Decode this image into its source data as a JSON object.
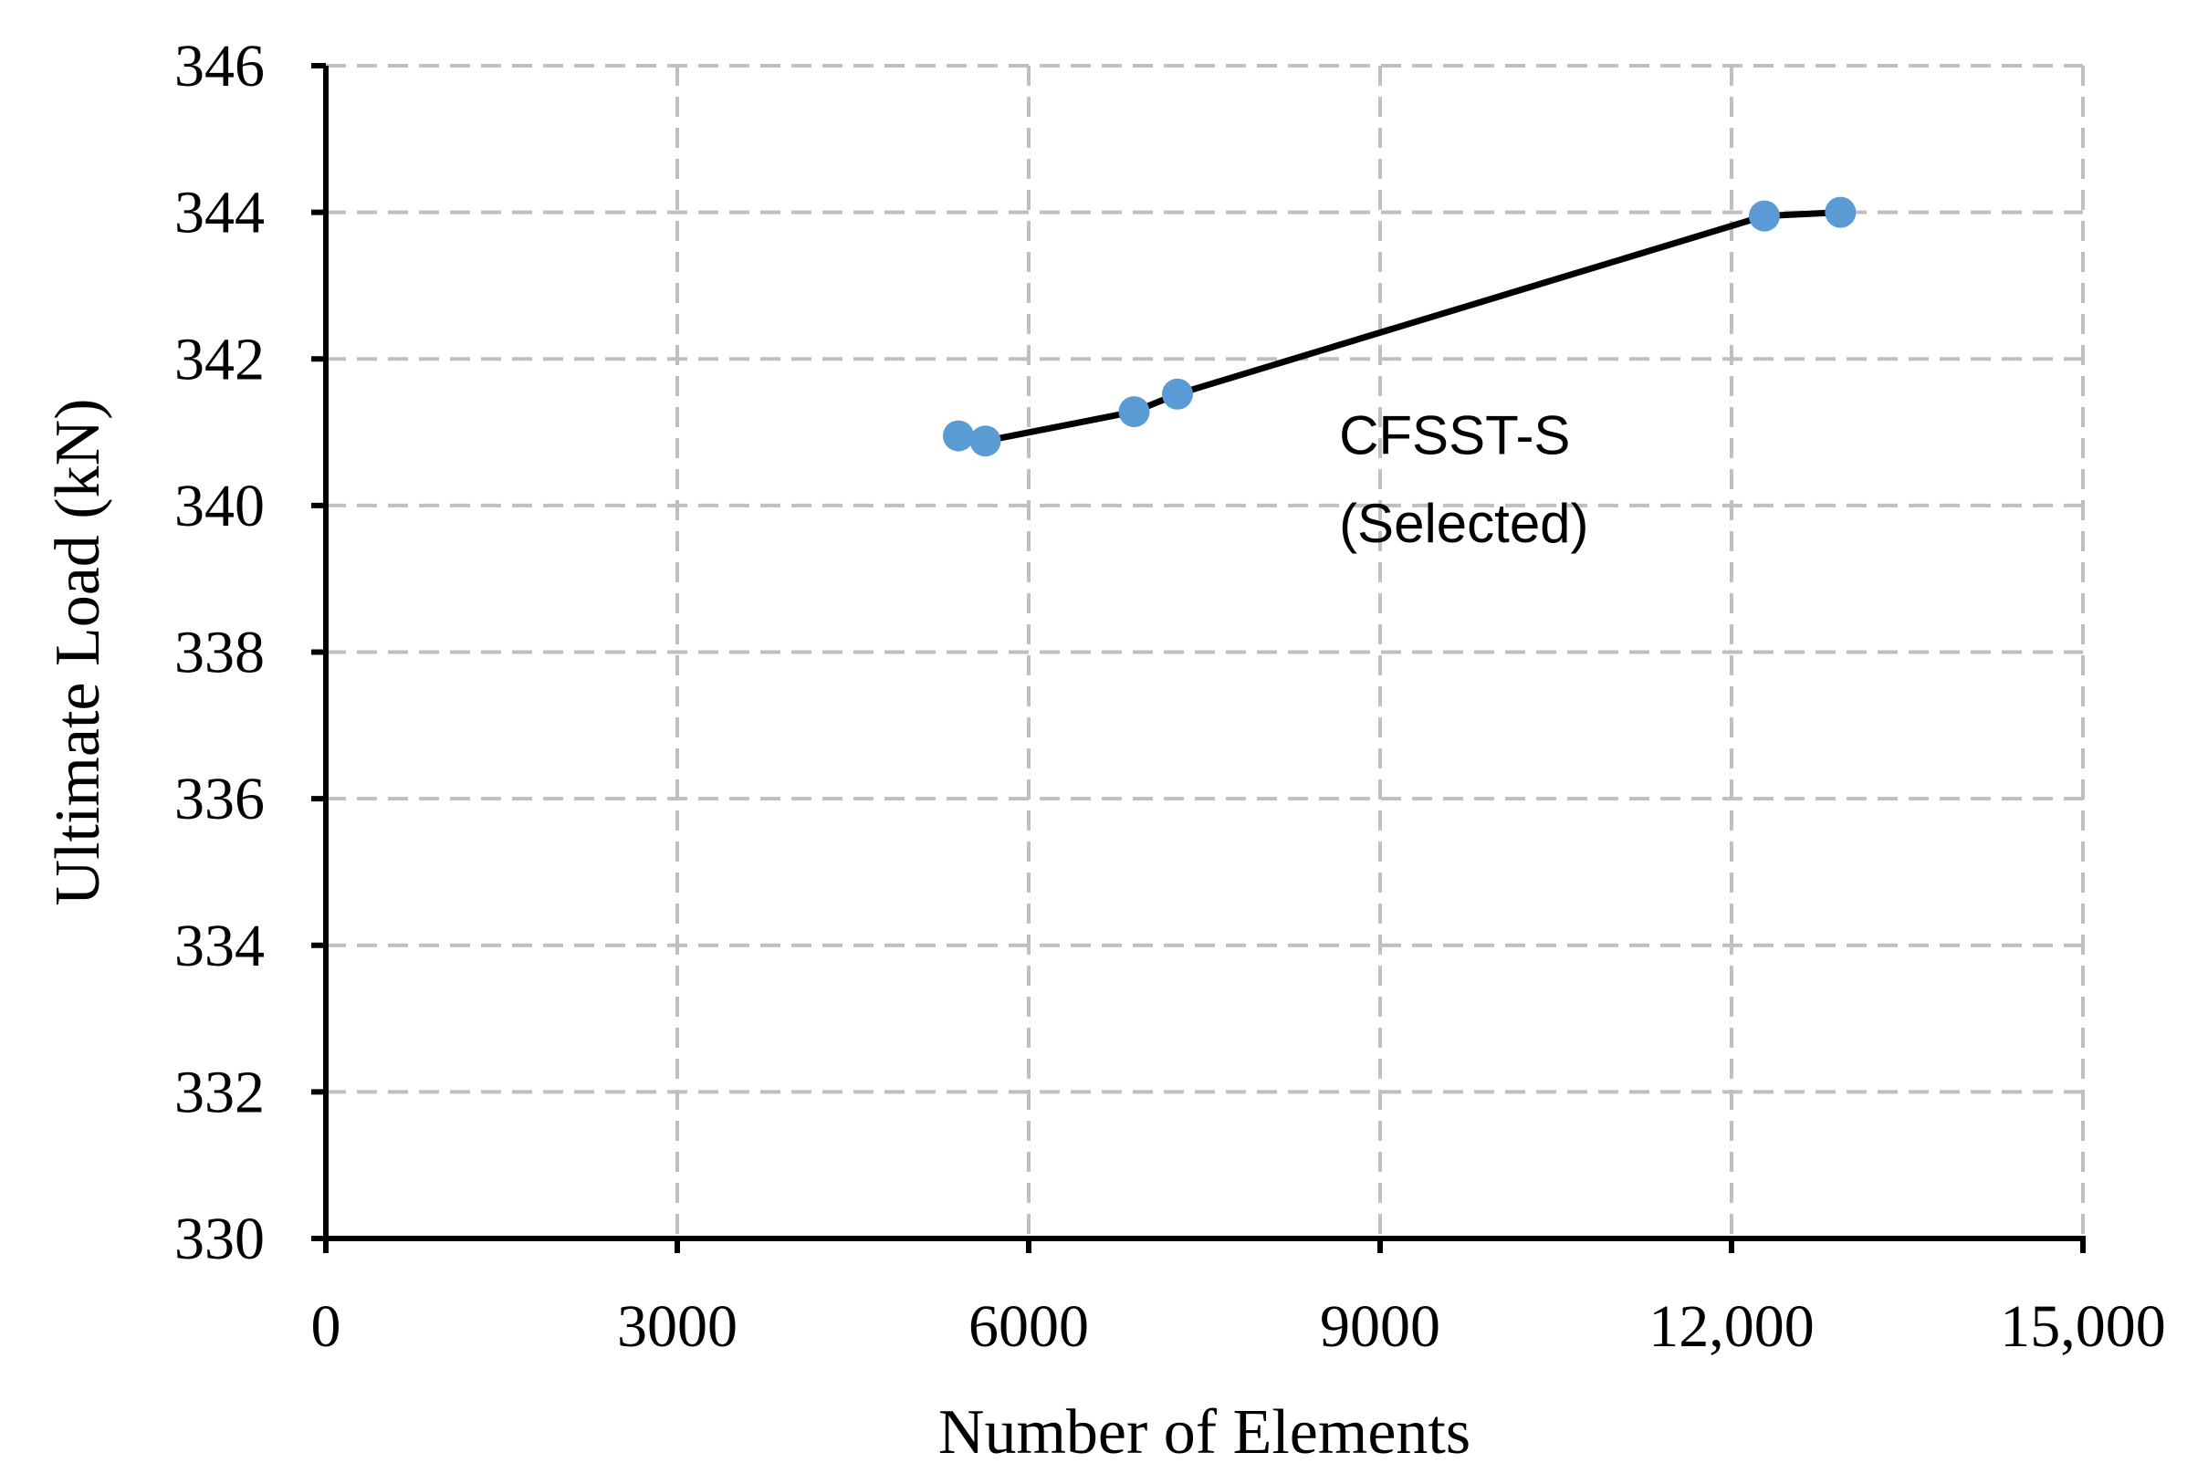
{
  "chart_data": {
    "type": "line",
    "title": "",
    "xlabel": "Number of Elements",
    "ylabel": "Ultimate Load (kN)",
    "xlim": [
      0,
      15000
    ],
    "ylim": [
      330,
      346
    ],
    "x_ticks": [
      0,
      3000,
      6000,
      9000,
      12000,
      15000
    ],
    "x_tick_labels": [
      "0",
      "3000",
      "6000",
      "9000",
      "12,000",
      "15,000"
    ],
    "y_ticks": [
      330,
      332,
      334,
      336,
      338,
      340,
      342,
      344,
      346
    ],
    "y_tick_labels": [
      "330",
      "332",
      "334",
      "336",
      "338",
      "340",
      "342",
      "344",
      "346"
    ],
    "grid": true,
    "series": [
      {
        "x": [
          5400,
          5630,
          6900,
          7270,
          12280,
          12930
        ],
        "y": [
          340.95,
          340.88,
          341.28,
          341.52,
          343.95,
          344.0
        ],
        "marker_color": "#5b9bd5",
        "line_color": "#000000"
      }
    ],
    "annotations": [
      {
        "text": "CFSST-S",
        "x": 8650,
        "y": 340.7
      },
      {
        "text": "(Selected)",
        "x": 8650,
        "y": 339.5
      }
    ]
  }
}
